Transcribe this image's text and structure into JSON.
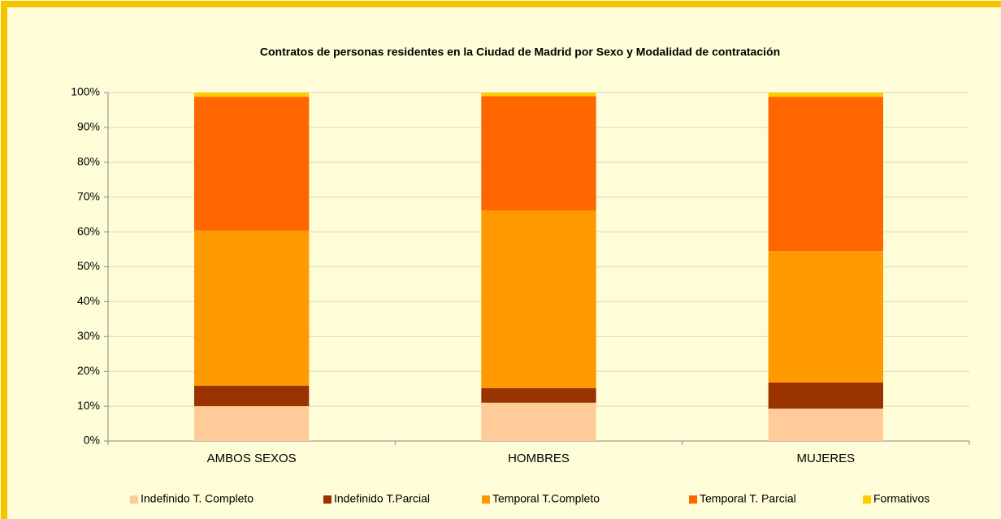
{
  "chart_data": {
    "type": "stacked_bar",
    "title": "Contratos de personas residentes en la Ciudad de Madrid por Sexo y Modalidad de contratación",
    "categories": [
      "AMBOS SEXOS",
      "HOMBRES",
      "MUJERES"
    ],
    "series": [
      {
        "name": "Indefinido T. Completo",
        "color": "#ffcc99",
        "values": [
          10.0,
          11.0,
          9.3
        ]
      },
      {
        "name": "Indefinido T.Parcial",
        "color": "#993300",
        "values": [
          5.9,
          4.2,
          7.5
        ]
      },
      {
        "name": "Temporal T.Completo",
        "color": "#ff9900",
        "values": [
          44.5,
          51.0,
          37.7
        ]
      },
      {
        "name": "Temporal T. Parcial",
        "color": "#ff6600",
        "values": [
          38.4,
          32.8,
          44.3
        ]
      },
      {
        "name": "Formativos",
        "color": "#ffcc00",
        "values": [
          1.2,
          1.0,
          1.2
        ]
      }
    ],
    "ylim": [
      0,
      100
    ],
    "yticks": [
      {
        "value": 0,
        "label": "0%"
      },
      {
        "value": 10,
        "label": "10%"
      },
      {
        "value": 20,
        "label": "20%"
      },
      {
        "value": 30,
        "label": "30%"
      },
      {
        "value": 40,
        "label": "40%"
      },
      {
        "value": 50,
        "label": "50%"
      },
      {
        "value": 60,
        "label": "60%"
      },
      {
        "value": 70,
        "label": "70%"
      },
      {
        "value": 80,
        "label": "80%"
      },
      {
        "value": 90,
        "label": "90%"
      },
      {
        "value": 100,
        "label": "100%"
      }
    ],
    "grid": true,
    "legend": "bottom"
  }
}
